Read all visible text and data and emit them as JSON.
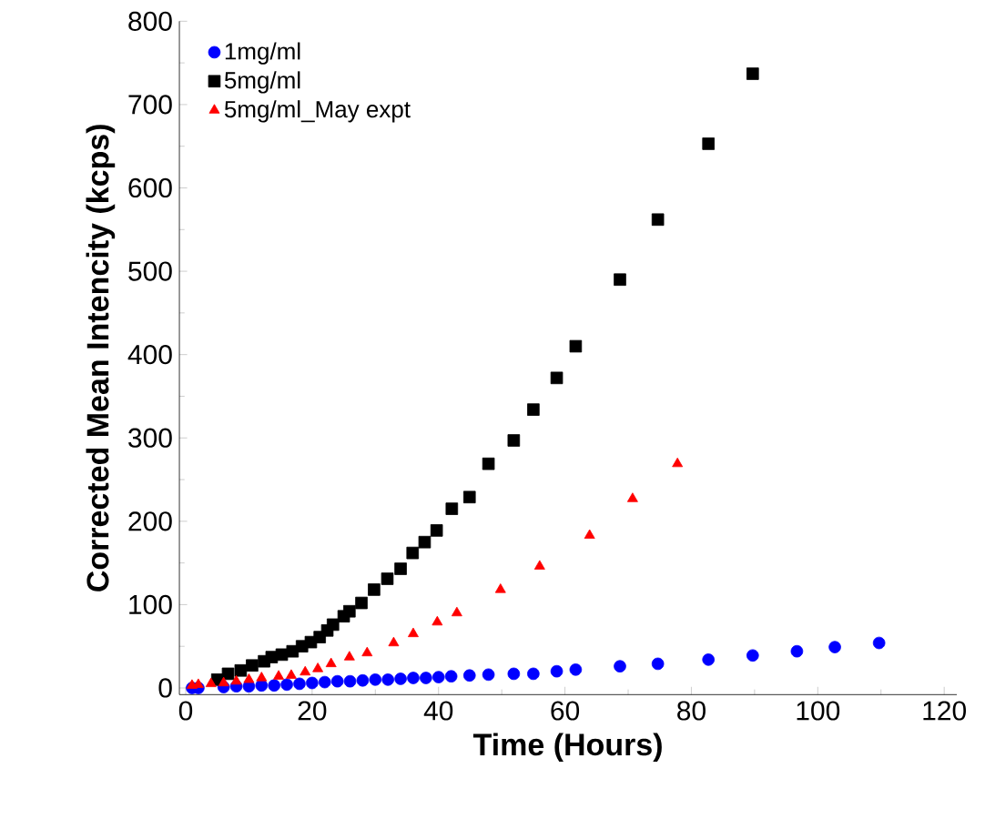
{
  "chart_data": {
    "type": "scatter",
    "xlabel": "Time (Hours)",
    "ylabel": "Corrected Mean Intencity (kcps)",
    "xlim": [
      -1,
      122
    ],
    "ylim": [
      -8,
      800
    ],
    "xticks": [
      0,
      20,
      40,
      60,
      80,
      100,
      120
    ],
    "yticks": [
      0,
      100,
      200,
      300,
      400,
      500,
      600,
      700,
      800
    ],
    "grid": false,
    "legend": "top left",
    "series": [
      {
        "name": "1mg/ml",
        "color": "#0000ff",
        "marker": "circle",
        "x": [
          1,
          2,
          6,
          8,
          10,
          12,
          14,
          16,
          18,
          20,
          22,
          24,
          26,
          28,
          30,
          32,
          34,
          36,
          38,
          40,
          42,
          44.9,
          47.9,
          51.9,
          55,
          58.7,
          61.7,
          68.7,
          74.7,
          82.7,
          89.7,
          96.7,
          102.7,
          109.7
        ],
        "values": [
          0,
          0,
          1,
          2,
          2,
          3,
          3,
          4,
          5,
          6,
          7,
          8,
          8,
          9,
          10,
          10,
          11,
          12,
          12,
          13,
          14,
          15,
          16,
          17,
          17,
          20,
          22,
          26,
          29,
          34,
          39,
          44,
          49,
          54
        ]
      },
      {
        "name": "5mg/ml",
        "color": "#000000",
        "marker": "square",
        "x": [
          5,
          6.7,
          8.7,
          10.5,
          12.4,
          13.6,
          15.2,
          16.9,
          18.4,
          19.8,
          21.2,
          22.4,
          23.3,
          25,
          25.9,
          27.8,
          29.8,
          31.9,
          34,
          35.9,
          37.8,
          39.7,
          42.1,
          44.9,
          47.9,
          51.9,
          55,
          58.7,
          61.7,
          68.7,
          74.7,
          82.7,
          89.7
        ],
        "values": [
          10,
          17,
          21,
          27,
          32,
          37,
          40,
          44,
          50,
          55,
          61,
          69,
          76,
          86,
          92,
          102,
          118,
          131,
          143,
          162,
          175,
          189,
          215,
          229,
          269,
          297,
          334,
          372,
          410,
          490,
          562,
          653,
          737
        ]
      },
      {
        "name": "5mg/ml_May expt",
        "color": "#ff0000",
        "marker": "triangle",
        "x": [
          1,
          2,
          4,
          6,
          8,
          10,
          12,
          14.7,
          16.7,
          18.9,
          20.9,
          23,
          25.9,
          28.7,
          32.9,
          36,
          39.8,
          42.9,
          49.8,
          56,
          63.9,
          70.7,
          77.8
        ],
        "values": [
          3,
          4,
          5,
          6,
          8,
          10,
          12,
          14,
          15,
          19,
          23,
          29,
          37,
          42,
          54,
          65,
          79,
          90,
          118,
          146,
          183,
          227,
          269
        ]
      }
    ]
  }
}
